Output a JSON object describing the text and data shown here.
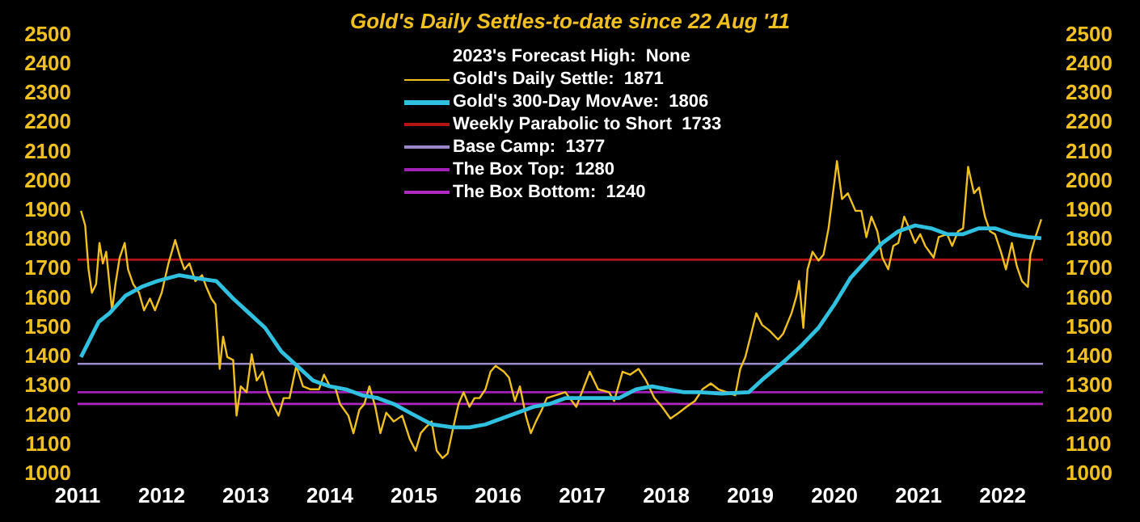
{
  "chart_data": {
    "type": "line",
    "title": "Gold's Daily Settles-to-date since 22 Aug '11",
    "annotations": [
      "2023's Forecast High:  None"
    ],
    "xlim": [
      2011,
      2022.48
    ],
    "xticks": [
      2011,
      2012,
      2013,
      2014,
      2015,
      2016,
      2017,
      2018,
      2019,
      2020,
      2021,
      2022
    ],
    "ylim": [
      1000,
      2500
    ],
    "yticks": [
      1000,
      1100,
      1200,
      1300,
      1400,
      1500,
      1600,
      1700,
      1800,
      1900,
      2000,
      2100,
      2200,
      2300,
      2400,
      2500
    ],
    "y2lim": [
      1000,
      2500
    ],
    "y2ticks": [
      1000,
      1100,
      1200,
      1300,
      1400,
      1500,
      1600,
      1700,
      1800,
      1900,
      2000,
      2100,
      2200,
      2300,
      2400,
      2500
    ],
    "legend": "top",
    "marker": "none",
    "line_style": "solid",
    "series": [
      {
        "name": "Gold's Daily Settle:  1871",
        "color": "#f0c020",
        "x": [
          2011.04,
          2011.09,
          2011.13,
          2011.17,
          2011.22,
          2011.26,
          2011.3,
          2011.34,
          2011.41,
          2011.45,
          2011.5,
          2011.56,
          2011.6,
          2011.66,
          2011.73,
          2011.79,
          2011.86,
          2011.92,
          2012.0,
          2012.08,
          2012.16,
          2012.22,
          2012.27,
          2012.33,
          2012.4,
          2012.48,
          2012.53,
          2012.59,
          2012.64,
          2012.69,
          2012.73,
          2012.78,
          2012.85,
          2012.89,
          2012.94,
          2013.01,
          2013.07,
          2013.13,
          2013.2,
          2013.26,
          2013.32,
          2013.39,
          2013.45,
          2013.52,
          2013.6,
          2013.68,
          2013.77,
          2013.87,
          2013.93,
          2014.0,
          2014.06,
          2014.12,
          2014.22,
          2014.28,
          2014.35,
          2014.41,
          2014.47,
          2014.54,
          2014.6,
          2014.67,
          2014.76,
          2014.86,
          2014.95,
          2015.02,
          2015.08,
          2015.14,
          2015.21,
          2015.27,
          2015.34,
          2015.4,
          2015.46,
          2015.53,
          2015.59,
          2015.66,
          2015.72,
          2015.78,
          2015.85,
          2015.91,
          2015.97,
          2016.07,
          2016.13,
          2016.2,
          2016.26,
          2016.33,
          2016.39,
          2016.45,
          2016.52,
          2016.58,
          2016.8,
          2016.93,
          2017.09,
          2017.19,
          2017.32,
          2017.38,
          2017.48,
          2017.57,
          2017.67,
          2017.76,
          2017.86,
          2017.95,
          2018.05,
          2018.15,
          2018.24,
          2018.34,
          2018.43,
          2018.53,
          2018.62,
          2018.72,
          2018.82,
          2018.88,
          2018.94,
          2019.01,
          2019.07,
          2019.14,
          2019.23,
          2019.33,
          2019.39,
          2019.49,
          2019.55,
          2019.58,
          2019.63,
          2019.68,
          2019.74,
          2019.81,
          2019.87,
          2019.93,
          2020.0,
          2020.03,
          2020.09,
          2020.16,
          2020.25,
          2020.32,
          2020.38,
          2020.44,
          2020.51,
          2020.57,
          2020.64,
          2020.7,
          2020.76,
          2020.83,
          2020.89,
          2020.96,
          2021.02,
          2021.08,
          2021.18,
          2021.24,
          2021.34,
          2021.4,
          2021.47,
          2021.53,
          2021.59,
          2021.66,
          2021.72,
          2021.79,
          2021.85,
          2021.91,
          2021.98,
          2022.04,
          2022.11,
          2022.17,
          2022.23,
          2022.3,
          2022.33,
          2022.39,
          2022.46
        ],
        "values": [
          1900,
          1850,
          1700,
          1620,
          1650,
          1790,
          1720,
          1760,
          1560,
          1650,
          1740,
          1790,
          1700,
          1650,
          1620,
          1560,
          1600,
          1560,
          1620,
          1720,
          1800,
          1740,
          1700,
          1720,
          1660,
          1680,
          1640,
          1600,
          1580,
          1360,
          1470,
          1400,
          1390,
          1200,
          1300,
          1280,
          1410,
          1320,
          1350,
          1280,
          1240,
          1200,
          1260,
          1260,
          1370,
          1300,
          1290,
          1290,
          1340,
          1300,
          1300,
          1240,
          1200,
          1140,
          1220,
          1240,
          1300,
          1230,
          1140,
          1210,
          1180,
          1200,
          1120,
          1080,
          1140,
          1160,
          1180,
          1080,
          1055,
          1070,
          1150,
          1240,
          1280,
          1230,
          1260,
          1260,
          1290,
          1350,
          1370,
          1350,
          1330,
          1250,
          1300,
          1200,
          1140,
          1180,
          1220,
          1260,
          1280,
          1230,
          1350,
          1290,
          1280,
          1250,
          1350,
          1340,
          1360,
          1320,
          1260,
          1230,
          1190,
          1210,
          1230,
          1250,
          1290,
          1310,
          1290,
          1280,
          1270,
          1360,
          1400,
          1480,
          1550,
          1510,
          1490,
          1460,
          1480,
          1550,
          1610,
          1660,
          1500,
          1700,
          1760,
          1730,
          1750,
          1840,
          2000,
          2070,
          1940,
          1960,
          1900,
          1900,
          1810,
          1880,
          1830,
          1740,
          1700,
          1780,
          1790,
          1880,
          1840,
          1790,
          1820,
          1780,
          1740,
          1810,
          1820,
          1780,
          1830,
          1840,
          2050,
          1960,
          1980,
          1880,
          1830,
          1820,
          1760,
          1700,
          1790,
          1710,
          1660,
          1640,
          1750,
          1810,
          1871
        ]
      },
      {
        "name": "Gold's 300-Day MovAve:  1806",
        "color": "#30c0e0",
        "x": [
          2011.04,
          2011.25,
          2011.38,
          2011.57,
          2011.76,
          2011.95,
          2012.21,
          2012.4,
          2012.65,
          2012.85,
          2013.04,
          2013.23,
          2013.42,
          2013.61,
          2013.8,
          2014.0,
          2014.19,
          2014.38,
          2014.57,
          2014.76,
          2014.95,
          2015.21,
          2015.46,
          2015.66,
          2015.85,
          2016.04,
          2016.23,
          2016.42,
          2016.61,
          2016.8,
          2017.25,
          2017.44,
          2017.64,
          2017.83,
          2018.02,
          2018.21,
          2018.4,
          2018.66,
          2018.98,
          2019.17,
          2019.42,
          2019.61,
          2019.81,
          2020.0,
          2020.19,
          2020.38,
          2020.57,
          2020.76,
          2020.96,
          2021.15,
          2021.34,
          2021.53,
          2021.72,
          2021.91,
          2022.11,
          2022.3,
          2022.46
        ],
        "values": [
          1400,
          1520,
          1550,
          1610,
          1640,
          1660,
          1680,
          1670,
          1660,
          1600,
          1550,
          1500,
          1420,
          1370,
          1320,
          1300,
          1290,
          1270,
          1260,
          1240,
          1210,
          1170,
          1160,
          1160,
          1170,
          1190,
          1210,
          1230,
          1240,
          1260,
          1260,
          1260,
          1290,
          1300,
          1290,
          1280,
          1280,
          1275,
          1280,
          1330,
          1390,
          1440,
          1500,
          1580,
          1670,
          1730,
          1790,
          1830,
          1850,
          1840,
          1820,
          1820,
          1840,
          1840,
          1820,
          1810,
          1806
        ]
      }
    ],
    "ref_lines": [
      {
        "axis": "y",
        "value": 1733,
        "label": "Weekly Parabolic to Short  1733",
        "color": "#b01414"
      },
      {
        "axis": "y",
        "value": 1377,
        "label": "Base Camp:  1377",
        "color": "#9a88c8"
      },
      {
        "axis": "y",
        "value": 1280,
        "label": "The Box Top:  1280",
        "color": "#a020b8"
      },
      {
        "axis": "y",
        "value": 1240,
        "label": "The Box Bottom:  1240",
        "color": "#b028c0"
      }
    ]
  }
}
